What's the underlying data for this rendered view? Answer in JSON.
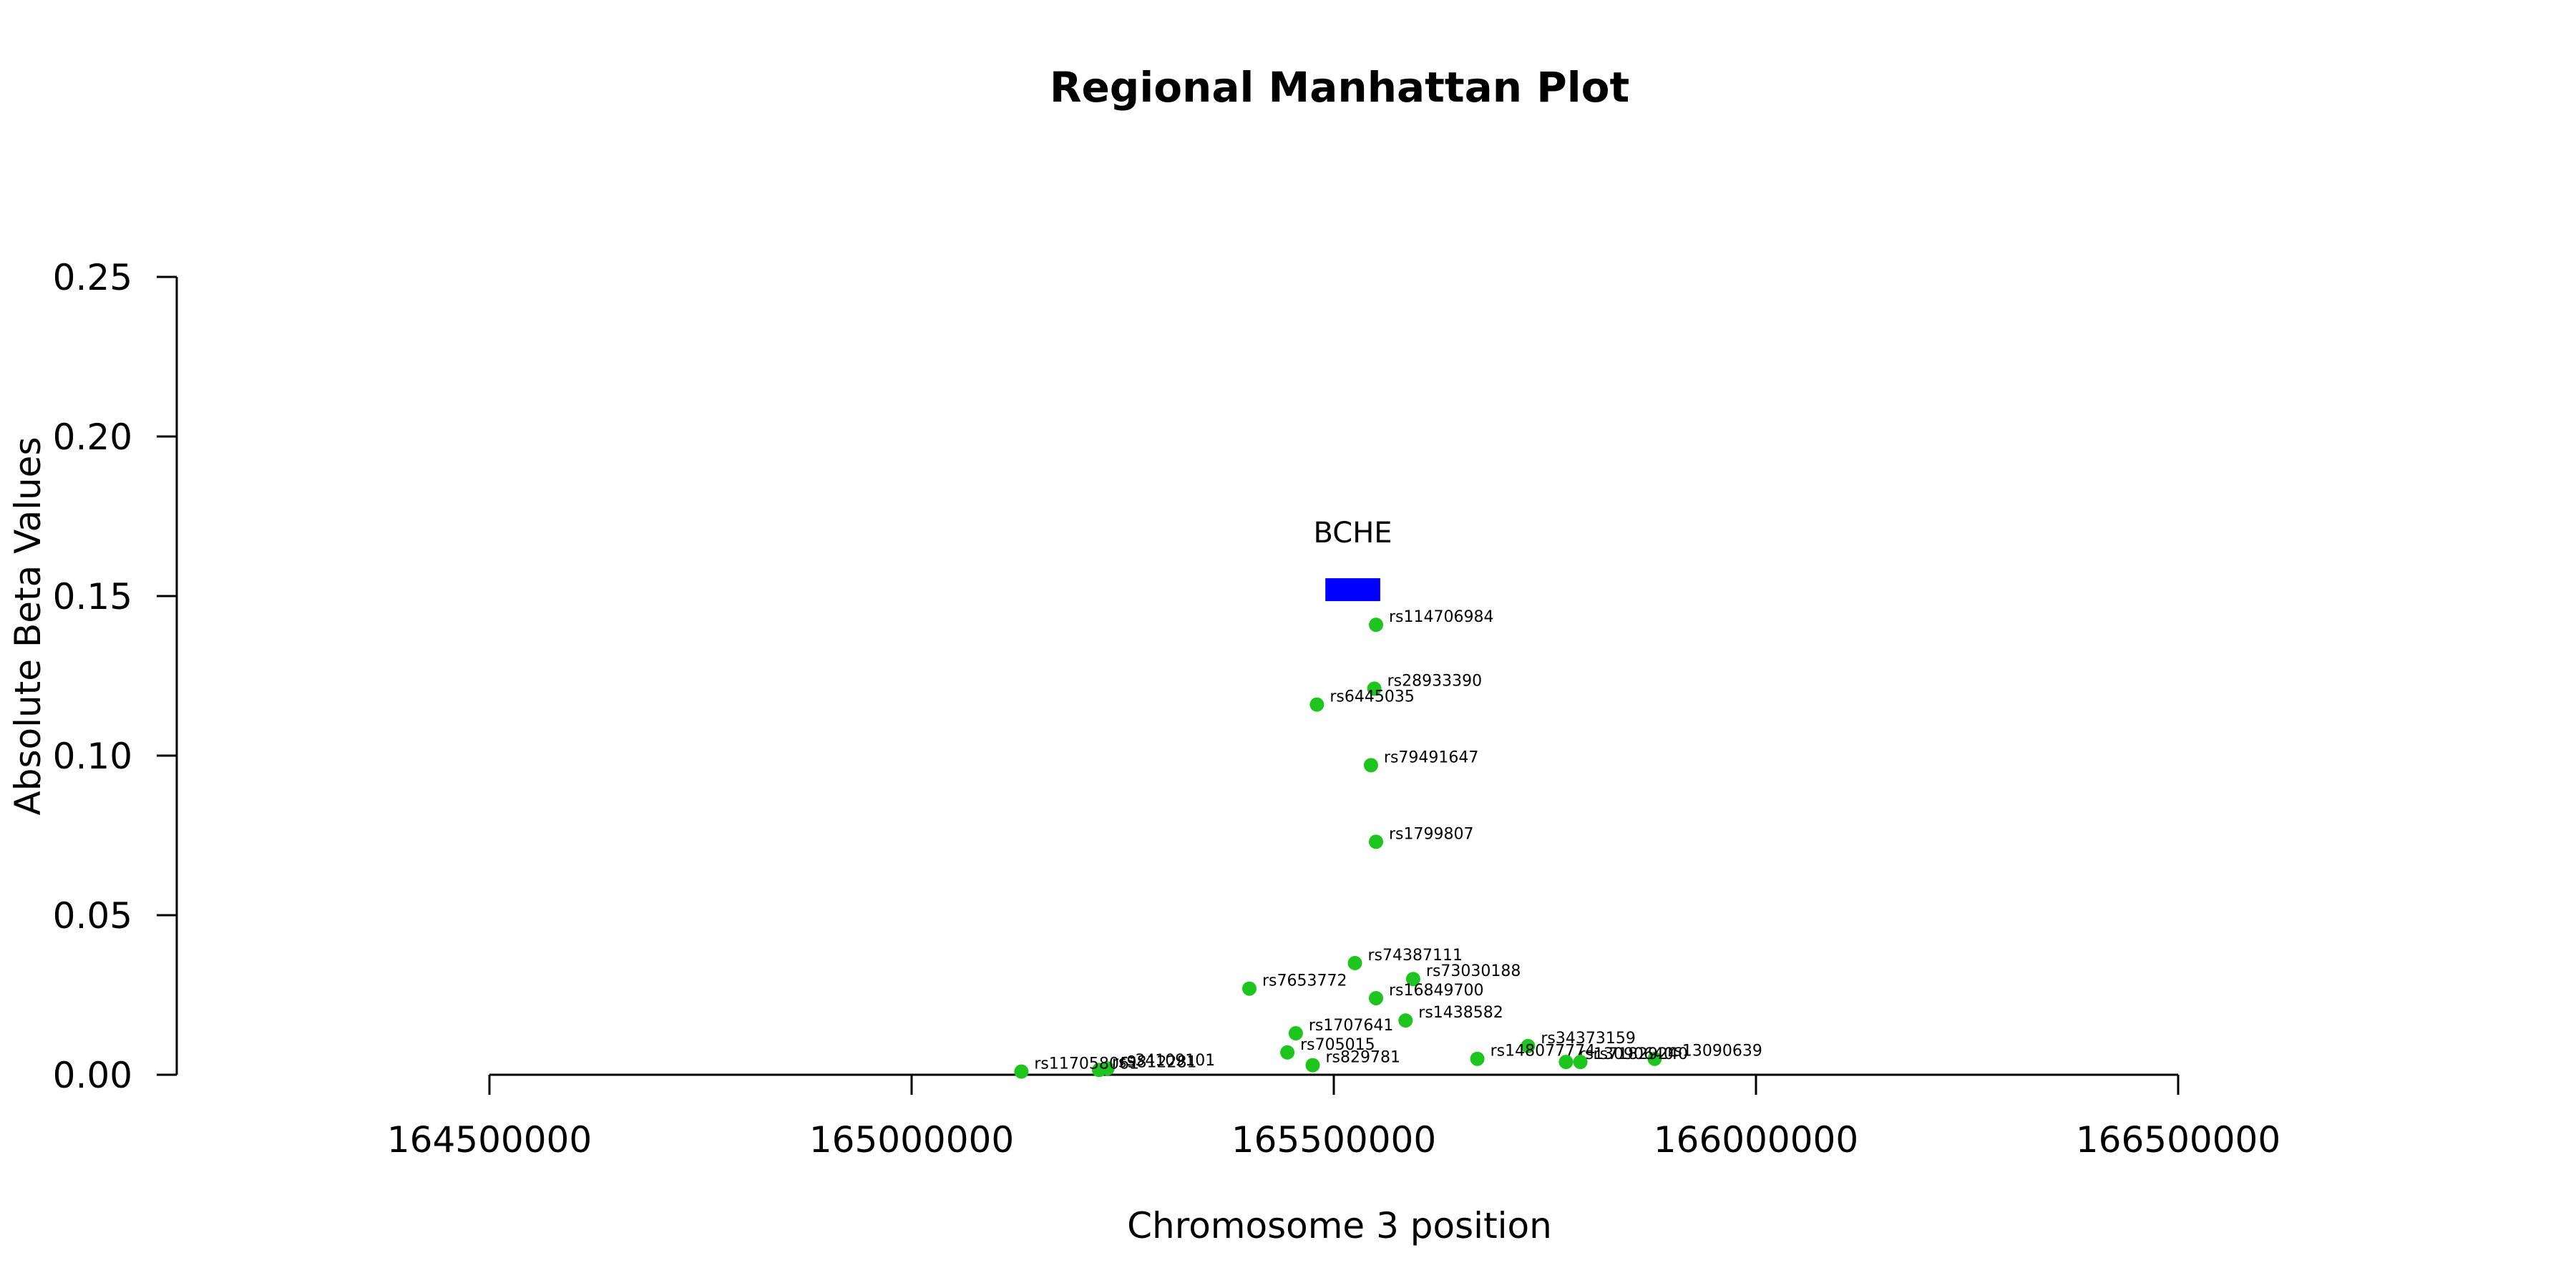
{
  "chart_data": {
    "type": "scatter",
    "title": "Regional Manhattan Plot",
    "xlabel": "Chromosome 3 position",
    "ylabel": "Absolute Beta Values",
    "xlim": [
      164500000,
      166500000
    ],
    "ylim": [
      0,
      0.25
    ],
    "x_ticks": [
      164500000,
      165000000,
      165500000,
      166000000,
      166500000
    ],
    "x_tick_labels": [
      "164500000",
      "165000000",
      "165500000",
      "166000000",
      "166500000"
    ],
    "y_ticks": [
      0,
      0.05,
      0.1,
      0.15,
      0.2,
      0.25
    ],
    "y_tick_labels": [
      "0.00",
      "0.05",
      "0.10",
      "0.15",
      "0.20",
      "0.25"
    ],
    "grid": false,
    "point_color": "#1ec51e",
    "gene_color": "#0000ff",
    "genes": [
      {
        "name": "BCHE",
        "start": 165490000,
        "end": 165555000,
        "y": 0.152
      }
    ],
    "points": [
      {
        "label": "rs114706984",
        "x": 165550000,
        "y": 0.141
      },
      {
        "label": "rs28933390",
        "x": 165548000,
        "y": 0.121
      },
      {
        "label": "rs6445035",
        "x": 165480000,
        "y": 0.116
      },
      {
        "label": "rs79491647",
        "x": 165544000,
        "y": 0.097
      },
      {
        "label": "rs1799807",
        "x": 165550000,
        "y": 0.073
      },
      {
        "label": "rs74387111",
        "x": 165525000,
        "y": 0.035
      },
      {
        "label": "rs73030188",
        "x": 165594000,
        "y": 0.03
      },
      {
        "label": "rs7653772",
        "x": 165400000,
        "y": 0.027
      },
      {
        "label": "rs16849700",
        "x": 165550000,
        "y": 0.024
      },
      {
        "label": "rs1438582",
        "x": 165585000,
        "y": 0.017
      },
      {
        "label": "rs1707641",
        "x": 165455000,
        "y": 0.013
      },
      {
        "label": "rs34373159",
        "x": 165730000,
        "y": 0.009
      },
      {
        "label": "rs705015",
        "x": 165445000,
        "y": 0.007
      },
      {
        "label": "rs148077774",
        "x": 165670000,
        "y": 0.005
      },
      {
        "label": "rs13090639",
        "x": 165880000,
        "y": 0.005
      },
      {
        "label": "rs13090640",
        "x": 165775000,
        "y": 0.004
      },
      {
        "label": "rs71829240",
        "x": 165792000,
        "y": 0.004
      },
      {
        "label": "rs829781",
        "x": 165475000,
        "y": 0.003
      },
      {
        "label": "rs34109101",
        "x": 165232000,
        "y": 0.002
      },
      {
        "label": "rs9812281",
        "x": 165222000,
        "y": 0.0015
      },
      {
        "label": "rs117058061",
        "x": 165130000,
        "y": 0.001
      }
    ]
  }
}
